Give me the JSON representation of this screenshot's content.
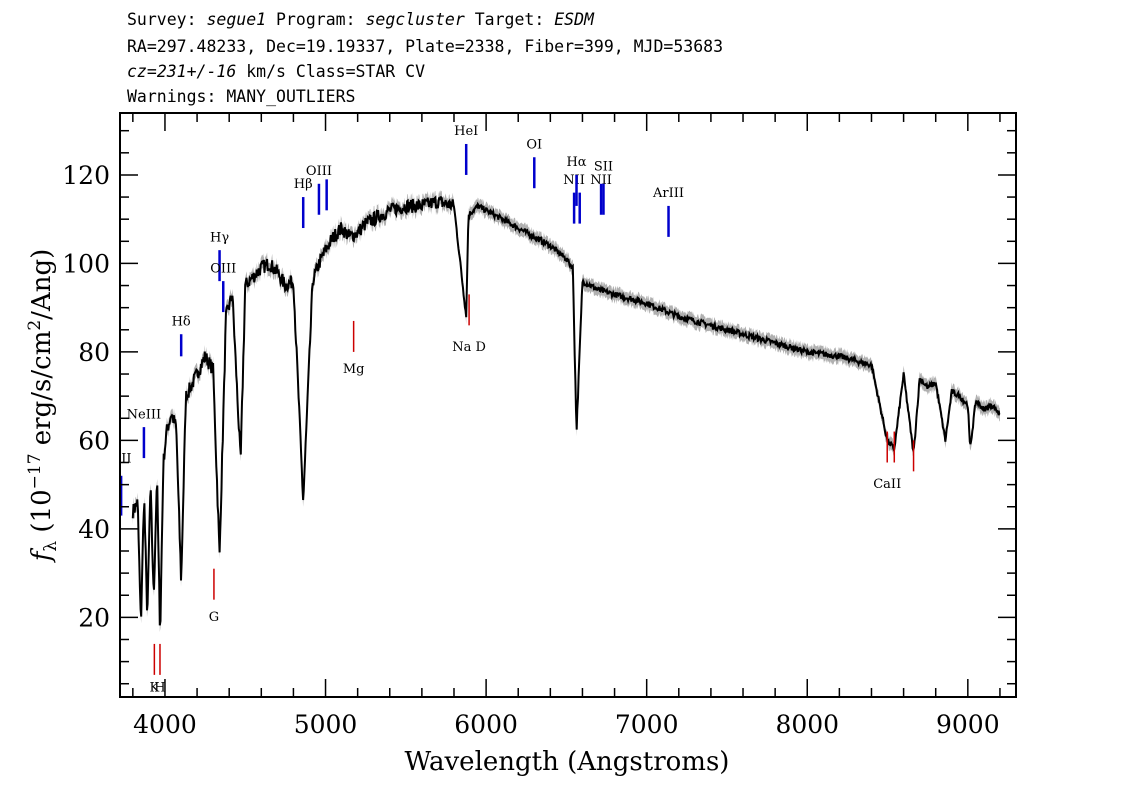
{
  "header": {
    "line1": {
      "survey_label": "Survey:",
      "survey": "segue1",
      "program_label": "Program:",
      "program": "segcluster",
      "target_label": "Target:",
      "target": "ESDM"
    },
    "line2": "RA=297.48233, Dec=19.19337, Plate=2338, Fiber=399, MJD=53683",
    "line3": {
      "cz_label": "cz=",
      "cz": "231+/-16",
      "rest": " km/s Class=STAR CV"
    },
    "line4": "Warnings: MANY_OUTLIERS"
  },
  "colors": {
    "spectrum": "#000000",
    "error_band": "#b0b0b0",
    "emission": "#0000cc",
    "absorption": "#cc0000"
  },
  "chart_data": {
    "type": "line",
    "xlabel": "Wavelength (Angstroms)",
    "ylabel": "f_λ (10^-17 erg/s/cm^2/Ang)",
    "ylabel_parts": {
      "f": "f",
      "sub": "λ",
      "pre": " (10",
      "exp1": "−17",
      "mid": " erg/s/cm",
      "exp2": "2",
      "post": "/Ang)"
    },
    "xlim": [
      3720,
      9300
    ],
    "ylim": [
      2,
      134
    ],
    "xticks": [
      4000,
      5000,
      6000,
      7000,
      8000,
      9000
    ],
    "yticks": [
      20,
      40,
      60,
      80,
      100,
      120
    ],
    "xtick_labels": [
      "4000",
      "5000",
      "6000",
      "7000",
      "8000",
      "9000"
    ],
    "ytick_labels": [
      "20",
      "40",
      "60",
      "80",
      "100",
      "120"
    ],
    "grid": false,
    "spectrum": {
      "x": [
        3800,
        3830,
        3850,
        3870,
        3890,
        3910,
        3930,
        3950,
        3970,
        3990,
        4010,
        4040,
        4070,
        4101,
        4130,
        4160,
        4200,
        4250,
        4300,
        4340,
        4380,
        4420,
        4471,
        4500,
        4550,
        4600,
        4650,
        4700,
        4750,
        4800,
        4861,
        4920,
        4960,
        5000,
        5050,
        5100,
        5150,
        5200,
        5250,
        5300,
        5400,
        5500,
        5600,
        5700,
        5800,
        5876,
        5890,
        5950,
        6000,
        6100,
        6200,
        6300,
        6400,
        6500,
        6540,
        6563,
        6600,
        6700,
        6800,
        6900,
        7000,
        7200,
        7400,
        7600,
        7800,
        8000,
        8200,
        8400,
        8498,
        8542,
        8600,
        8662,
        8700,
        8750,
        8800,
        8860,
        8900,
        8950,
        9000,
        9014,
        9050,
        9100,
        9150,
        9200
      ],
      "y": [
        44,
        46,
        18,
        48,
        20,
        50,
        24,
        52,
        16,
        55,
        62,
        66,
        63,
        28,
        70,
        72,
        75,
        79,
        76,
        34,
        88,
        93,
        55,
        95,
        97,
        99,
        100,
        98,
        95,
        96,
        46,
        96,
        100,
        103,
        106,
        108,
        106,
        107,
        109,
        110,
        112,
        113,
        113,
        114,
        113,
        88,
        111,
        113,
        112,
        110,
        108,
        106,
        104,
        101,
        99,
        62,
        96,
        94,
        93,
        92,
        91,
        88,
        86,
        84,
        82,
        80,
        79,
        77,
        60,
        58,
        75,
        57,
        74,
        72,
        73,
        60,
        71,
        70,
        68,
        58,
        69,
        67,
        68,
        66
      ]
    },
    "error_band_halfwidth": 1.5,
    "line_markers": [
      {
        "label": "OII",
        "lambda": 3727,
        "y0": 43,
        "y1": 52,
        "color": "emission",
        "label_y": 55,
        "label_side": "top"
      },
      {
        "label": "NeIII",
        "lambda": 3869,
        "y0": 56,
        "y1": 63,
        "color": "emission",
        "label_y": 65,
        "label_side": "top"
      },
      {
        "label": "Hδ",
        "lambda": 4101,
        "y0": 79,
        "y1": 84,
        "color": "emission",
        "label_y": 86,
        "label_side": "top"
      },
      {
        "label": "Hγ",
        "lambda": 4340,
        "y0": 96,
        "y1": 103,
        "color": "emission",
        "label_y": 105,
        "label_side": "top"
      },
      {
        "label": "OIII",
        "lambda": 4363,
        "y0": 89,
        "y1": 96,
        "color": "emission",
        "label_y": 98,
        "label_side": "top"
      },
      {
        "label": "Hβ",
        "lambda": 4861,
        "y0": 108,
        "y1": 115,
        "color": "emission",
        "label_y": 117,
        "label_side": "top"
      },
      {
        "label": "OIII",
        "lambda": 4959,
        "y0": 111,
        "y1": 118,
        "color": "emission",
        "label_y": 120,
        "label_side": "top"
      },
      {
        "label": "",
        "lambda": 5007,
        "y0": 112,
        "y1": 119,
        "color": "emission"
      },
      {
        "label": "HeI",
        "lambda": 5876,
        "y0": 120,
        "y1": 127,
        "color": "emission",
        "label_y": 129,
        "label_side": "top"
      },
      {
        "label": "OI",
        "lambda": 6300,
        "y0": 117,
        "y1": 124,
        "color": "emission",
        "label_y": 126,
        "label_side": "top"
      },
      {
        "label": "NII",
        "lambda": 6548,
        "y0": 109,
        "y1": 116,
        "color": "emission",
        "label_y": 118,
        "label_side": "top"
      },
      {
        "label": "Hα",
        "lambda": 6563,
        "y0": 113,
        "y1": 120,
        "color": "emission",
        "label_y": 122,
        "label_side": "top"
      },
      {
        "label": "",
        "lambda": 6583,
        "y0": 109,
        "y1": 116,
        "color": "emission"
      },
      {
        "label": "NII",
        "lambda": 6716,
        "y0": 111,
        "y1": 118,
        "color": "emission",
        "label_y": 118,
        "label_side": "top"
      },
      {
        "label": "SII",
        "lambda": 6731,
        "y0": 111,
        "y1": 118,
        "color": "emission",
        "label_y": 121,
        "label_side": "top"
      },
      {
        "label": "ArIII",
        "lambda": 7136,
        "y0": 106,
        "y1": 113,
        "color": "emission",
        "label_y": 115,
        "label_side": "top"
      },
      {
        "label": "K",
        "lambda": 3934,
        "y0": 7,
        "y1": 14,
        "color": "absorption",
        "label_y": 5,
        "label_side": "bottom"
      },
      {
        "label": "H",
        "lambda": 3969,
        "y0": 7,
        "y1": 14,
        "color": "absorption",
        "label_y": 5,
        "label_side": "bottom"
      },
      {
        "label": "G",
        "lambda": 4305,
        "y0": 24,
        "y1": 31,
        "color": "absorption",
        "label_y": 21,
        "label_side": "bottom"
      },
      {
        "label": "Mg",
        "lambda": 5175,
        "y0": 80,
        "y1": 87,
        "color": "absorption",
        "label_y": 77,
        "label_side": "bottom"
      },
      {
        "label": "Na D",
        "lambda": 5894,
        "y0": 86,
        "y1": 93,
        "color": "absorption",
        "label_y": 82,
        "label_side": "bottom"
      },
      {
        "label": "CaII",
        "lambda": 8498,
        "y0": 55,
        "y1": 62,
        "color": "absorption",
        "label_y": 51,
        "label_side": "bottom"
      },
      {
        "label": "",
        "lambda": 8542,
        "y0": 55,
        "y1": 62,
        "color": "absorption"
      },
      {
        "label": "",
        "lambda": 8662,
        "y0": 53,
        "y1": 60,
        "color": "absorption"
      }
    ]
  }
}
